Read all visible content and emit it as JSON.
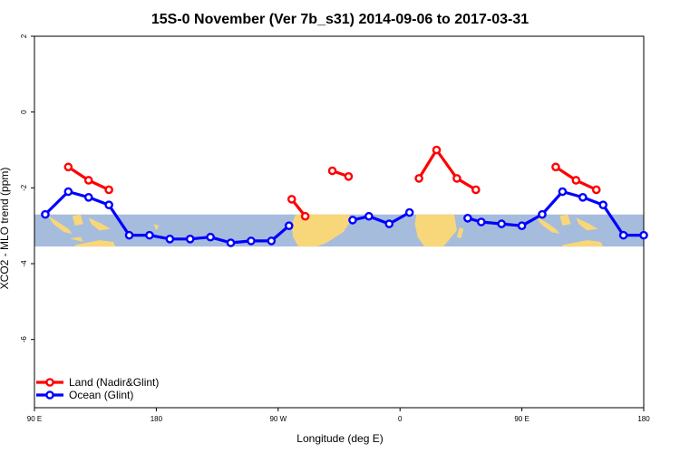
{
  "chart_data": {
    "type": "line",
    "title": "15S-0 November (Ver 7b_s31)   2014-09-06 to 2017-03-31",
    "xlabel": "Longitude (deg E)",
    "ylabel": "XCO2 - MLO trend (ppm)",
    "xlim": [
      90,
      450
    ],
    "ylim": [
      -7.8,
      2.0
    ],
    "x_ticks": [
      {
        "value": 90,
        "label": "90 E"
      },
      {
        "value": 180,
        "label": "180"
      },
      {
        "value": 270,
        "label": "90 W"
      },
      {
        "value": 360,
        "label": "0"
      },
      {
        "value": 450,
        "label": "90 E"
      },
      {
        "value": 540,
        "label": "180"
      }
    ],
    "y_ticks": [
      {
        "value": 2,
        "label": "2"
      },
      {
        "value": 0,
        "label": "0"
      },
      {
        "value": -2,
        "label": "-2"
      },
      {
        "value": -4,
        "label": "-4"
      },
      {
        "value": -6,
        "label": "-6"
      }
    ],
    "background_band": {
      "y_top": -2.7,
      "y_bottom": -3.55,
      "ocean_color": "#a6bcdc",
      "land_color": "#f8d77a"
    },
    "legend": {
      "position": "bottom-left"
    },
    "series": [
      {
        "name": "Land (Nadir&Glint)",
        "color": "#ff0000",
        "segments": [
          {
            "x": [
              115,
              130,
              145
            ],
            "y": [
              -1.45,
              -1.8,
              -2.05
            ]
          },
          {
            "x": [
              280,
              290
            ],
            "y": [
              -2.3,
              -2.75
            ]
          },
          {
            "x": [
              310,
              322
            ],
            "y": [
              -1.55,
              -1.7
            ]
          },
          {
            "x": [
              374,
              387,
              402,
              416
            ],
            "y": [
              -1.75,
              -1.0,
              -1.75,
              -2.05
            ]
          },
          {
            "x": [
              475,
              490,
              505
            ],
            "y": [
              -1.45,
              -1.8,
              -2.05
            ]
          }
        ]
      },
      {
        "name": "Ocean (Glint)",
        "color": "#0000ff",
        "segments": [
          {
            "x": [
              98,
              115,
              130,
              145,
              160,
              175,
              190,
              205,
              220,
              235,
              250,
              265,
              278
            ],
            "y": [
              -2.7,
              -2.1,
              -2.25,
              -2.45,
              -3.25,
              -3.25,
              -3.35,
              -3.35,
              -3.3,
              -3.45,
              -3.4,
              -3.4,
              -3.0
            ]
          },
          {
            "x": [
              325,
              337,
              352,
              367
            ],
            "y": [
              -2.85,
              -2.75,
              -2.95,
              -2.65
            ]
          },
          {
            "x": [
              410,
              420,
              435,
              450,
              465,
              480,
              495,
              510,
              525,
              540
            ],
            "y": [
              -2.8,
              -2.9,
              -2.95,
              -3.0,
              -2.7,
              -2.1,
              -2.25,
              -2.45,
              -3.25,
              -3.25
            ]
          }
        ]
      }
    ]
  }
}
